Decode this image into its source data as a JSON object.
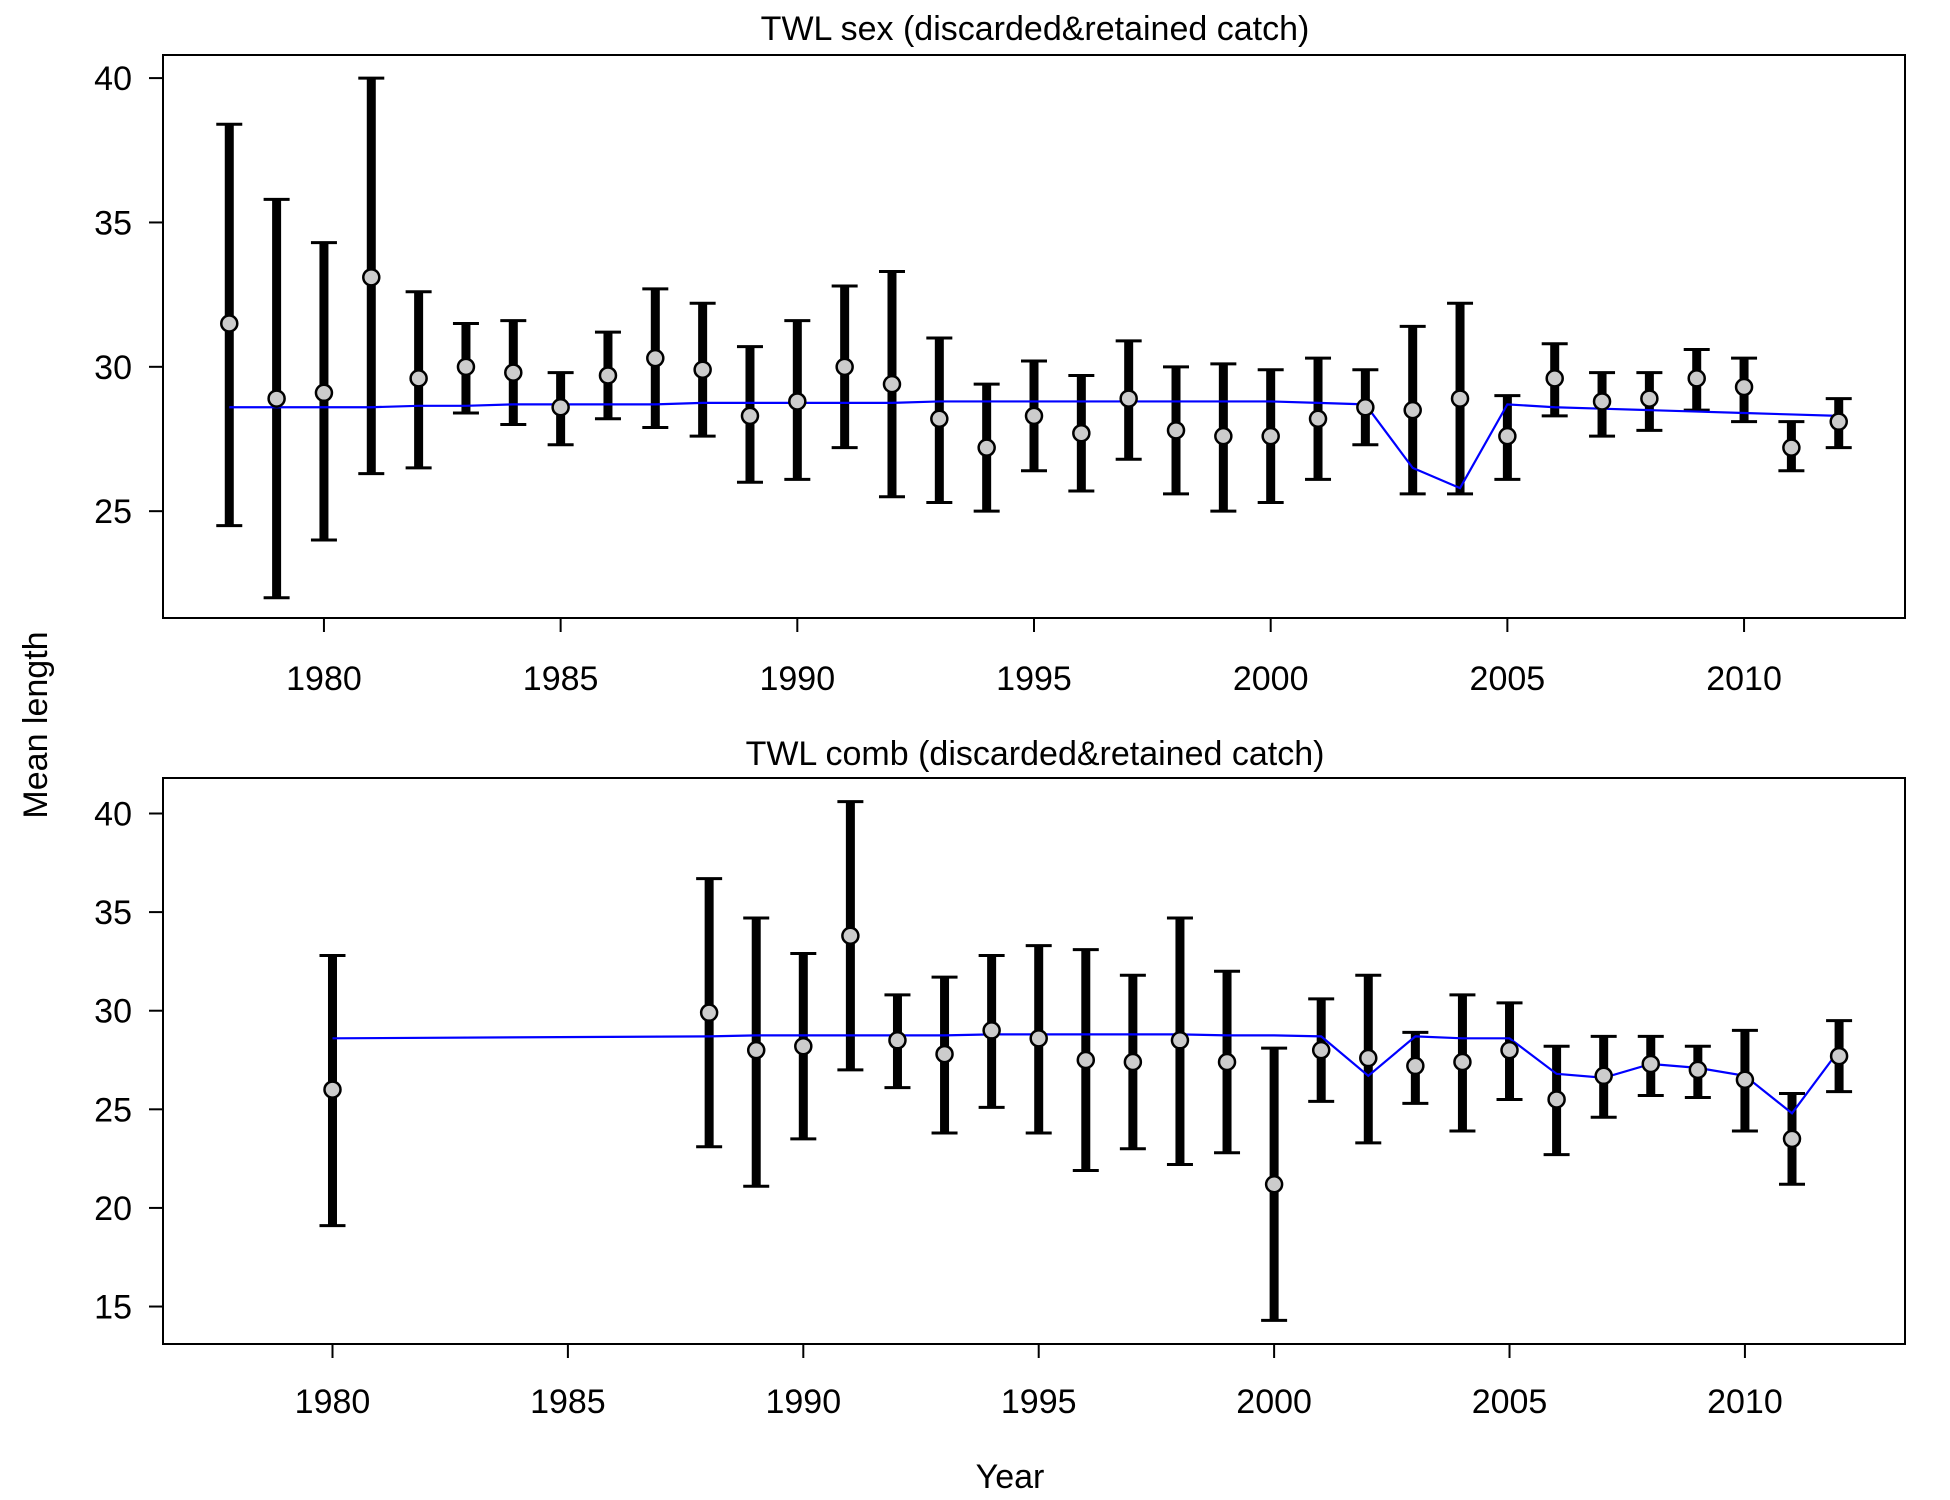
{
  "figure": {
    "ylabel": "Mean length",
    "xlabel": "Year"
  },
  "chart_data": [
    {
      "type": "scatter",
      "title": "TWL sex (discarded&retained catch)",
      "xlabel": "Year",
      "ylabel": "Mean length",
      "xlim": [
        1976.6,
        2013.4
      ],
      "ylim": [
        21.3,
        40.8
      ],
      "x_ticks": [
        1980,
        1985,
        1990,
        1995,
        2000,
        2005,
        2010
      ],
      "y_ticks": [
        25,
        30,
        35,
        40
      ],
      "grid": false,
      "colors": {
        "errorbar": "#000000",
        "point_fill": "#cccccc",
        "point_edge": "#000000",
        "expected_line": "#0000ff"
      },
      "series": [
        {
          "kind": "observed_mean_with_interval",
          "x": [
            1978,
            1979,
            1980,
            1981,
            1982,
            1983,
            1984,
            1985,
            1986,
            1987,
            1988,
            1989,
            1990,
            1991,
            1992,
            1993,
            1994,
            1995,
            1996,
            1997,
            1998,
            1999,
            2000,
            2001,
            2002,
            2003,
            2004,
            2005,
            2006,
            2007,
            2008,
            2009,
            2010,
            2011,
            2012
          ],
          "y": [
            31.5,
            28.9,
            29.1,
            33.1,
            29.6,
            30.0,
            29.8,
            28.6,
            29.7,
            30.3,
            29.9,
            28.3,
            28.8,
            30.0,
            29.4,
            28.2,
            27.2,
            28.3,
            27.7,
            28.9,
            27.8,
            27.6,
            27.6,
            28.2,
            28.6,
            28.5,
            28.9,
            27.6,
            29.6,
            28.8,
            28.9,
            29.6,
            29.3,
            27.2,
            28.1
          ],
          "lower": [
            24.5,
            22.0,
            24.0,
            26.3,
            26.5,
            28.4,
            28.0,
            27.3,
            28.2,
            27.9,
            27.6,
            26.0,
            26.1,
            27.2,
            25.5,
            25.3,
            25.0,
            26.4,
            25.7,
            26.8,
            25.6,
            25.0,
            25.3,
            26.1,
            27.3,
            25.6,
            25.6,
            26.1,
            28.3,
            27.6,
            27.8,
            28.5,
            28.1,
            26.4,
            27.2
          ],
          "upper": [
            38.4,
            35.8,
            34.3,
            40.0,
            32.6,
            31.5,
            31.6,
            29.8,
            31.2,
            32.7,
            32.2,
            30.7,
            31.6,
            32.8,
            33.3,
            31.0,
            29.4,
            30.2,
            29.7,
            30.9,
            30.0,
            30.1,
            29.9,
            30.3,
            29.9,
            31.4,
            32.2,
            29.0,
            30.8,
            29.8,
            29.8,
            30.6,
            30.3,
            28.1,
            28.9
          ]
        },
        {
          "kind": "expected_line",
          "x": [
            1978,
            1979,
            1980,
            1981,
            1982,
            1983,
            1984,
            1985,
            1986,
            1987,
            1988,
            1989,
            1990,
            1991,
            1992,
            1993,
            1994,
            1995,
            1996,
            1997,
            1998,
            1999,
            2000,
            2001,
            2002,
            2003,
            2004,
            2005,
            2006,
            2007,
            2008,
            2009,
            2010,
            2011,
            2012
          ],
          "y": [
            28.6,
            28.6,
            28.6,
            28.6,
            28.65,
            28.65,
            28.7,
            28.7,
            28.7,
            28.7,
            28.75,
            28.75,
            28.75,
            28.75,
            28.75,
            28.8,
            28.8,
            28.8,
            28.8,
            28.8,
            28.8,
            28.8,
            28.8,
            28.75,
            28.7,
            26.5,
            25.8,
            28.7,
            28.6,
            28.55,
            28.5,
            28.45,
            28.4,
            28.35,
            28.3
          ]
        }
      ]
    },
    {
      "type": "scatter",
      "title": "TWL comb (discarded&retained catch)",
      "xlabel": "Year",
      "ylabel": "Mean length",
      "xlim": [
        1976.4,
        2013.4
      ],
      "ylim": [
        13.1,
        41.8
      ],
      "x_ticks": [
        1980,
        1985,
        1990,
        1995,
        2000,
        2005,
        2010
      ],
      "y_ticks": [
        15,
        20,
        25,
        30,
        35,
        40
      ],
      "grid": false,
      "colors": {
        "errorbar": "#000000",
        "point_fill": "#cccccc",
        "point_edge": "#000000",
        "expected_line": "#0000ff"
      },
      "series": [
        {
          "kind": "observed_mean_with_interval",
          "x": [
            1980,
            1988,
            1989,
            1990,
            1991,
            1992,
            1993,
            1994,
            1995,
            1996,
            1997,
            1998,
            1999,
            2000,
            2001,
            2002,
            2003,
            2004,
            2005,
            2006,
            2007,
            2008,
            2009,
            2010,
            2011,
            2012
          ],
          "y": [
            26.0,
            29.9,
            28.0,
            28.2,
            33.8,
            28.5,
            27.8,
            29.0,
            28.6,
            27.5,
            27.4,
            28.5,
            27.4,
            21.2,
            28.0,
            27.6,
            27.2,
            27.4,
            28.0,
            25.5,
            26.7,
            27.3,
            27.0,
            26.5,
            23.5,
            27.7
          ],
          "lower": [
            19.1,
            23.1,
            21.1,
            23.5,
            27.0,
            26.1,
            23.8,
            25.1,
            23.8,
            21.9,
            23.0,
            22.2,
            22.8,
            14.3,
            25.4,
            23.3,
            25.3,
            23.9,
            25.5,
            22.7,
            24.6,
            25.7,
            25.6,
            23.9,
            21.2,
            25.9
          ],
          "upper": [
            32.8,
            36.7,
            34.7,
            32.9,
            40.6,
            30.8,
            31.7,
            32.8,
            33.3,
            33.1,
            31.8,
            34.7,
            32.0,
            28.1,
            30.6,
            31.8,
            28.9,
            30.8,
            30.4,
            28.2,
            28.7,
            28.7,
            28.2,
            29.0,
            25.8,
            29.5
          ]
        },
        {
          "kind": "expected_line",
          "x": [
            1980,
            1988,
            1989,
            1990,
            1991,
            1992,
            1993,
            1994,
            1995,
            1996,
            1997,
            1998,
            1999,
            2000,
            2001,
            2002,
            2003,
            2004,
            2005,
            2006,
            2007,
            2008,
            2009,
            2010,
            2011,
            2012
          ],
          "y": [
            28.6,
            28.7,
            28.75,
            28.75,
            28.75,
            28.75,
            28.75,
            28.8,
            28.8,
            28.8,
            28.8,
            28.8,
            28.75,
            28.75,
            28.7,
            26.7,
            28.7,
            28.6,
            28.6,
            26.8,
            26.6,
            27.3,
            27.1,
            26.7,
            24.8,
            28.0
          ]
        }
      ]
    }
  ]
}
